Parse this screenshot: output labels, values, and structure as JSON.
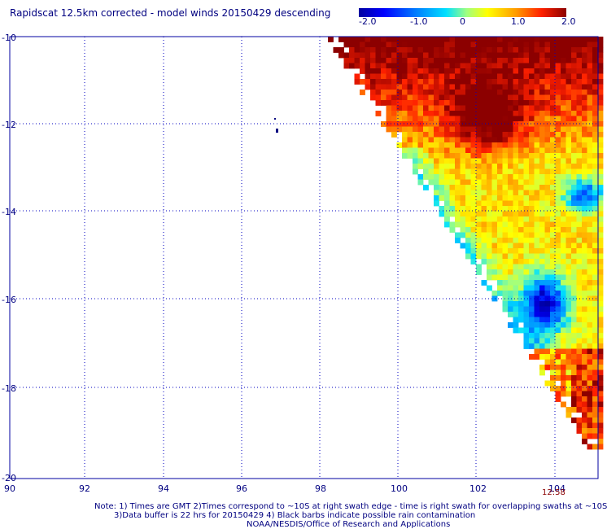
{
  "title": "Rapidscat 12.5km corrected - model winds 20150429 descending",
  "colorbar": {
    "labels": [
      "-2.0",
      "-1.0",
      "0",
      "1.0",
      "2.0"
    ],
    "colors": [
      "#0000a0",
      "#0000ff",
      "#0080ff",
      "#00e0ff",
      "#a0ff80",
      "#ffff00",
      "#ff9900",
      "#ff2000",
      "#8c0000"
    ]
  },
  "map": {
    "lat_labels": [
      "-10",
      "-12",
      "-14",
      "-16",
      "-18",
      "-20"
    ],
    "lon_labels": [
      "90",
      "92",
      "94",
      "96",
      "98",
      "100",
      "102",
      "104"
    ],
    "lon_range": [
      90,
      105
    ],
    "lat_range": [
      -20,
      -10
    ],
    "gridline_color": "#0000c0",
    "swath_time": "12:58"
  },
  "notes": {
    "line1": "Note: 1) Times are GMT 2)Times correspond to ~10S at right swath edge - time is right swath for overlapping swaths at ~10S",
    "line2": "3)Data buffer is 22 hrs for 20150429 4) Black barbs indicate possible rain contamination",
    "line3": "NOAA/NESDIS/Office of Research and Applications"
  }
}
